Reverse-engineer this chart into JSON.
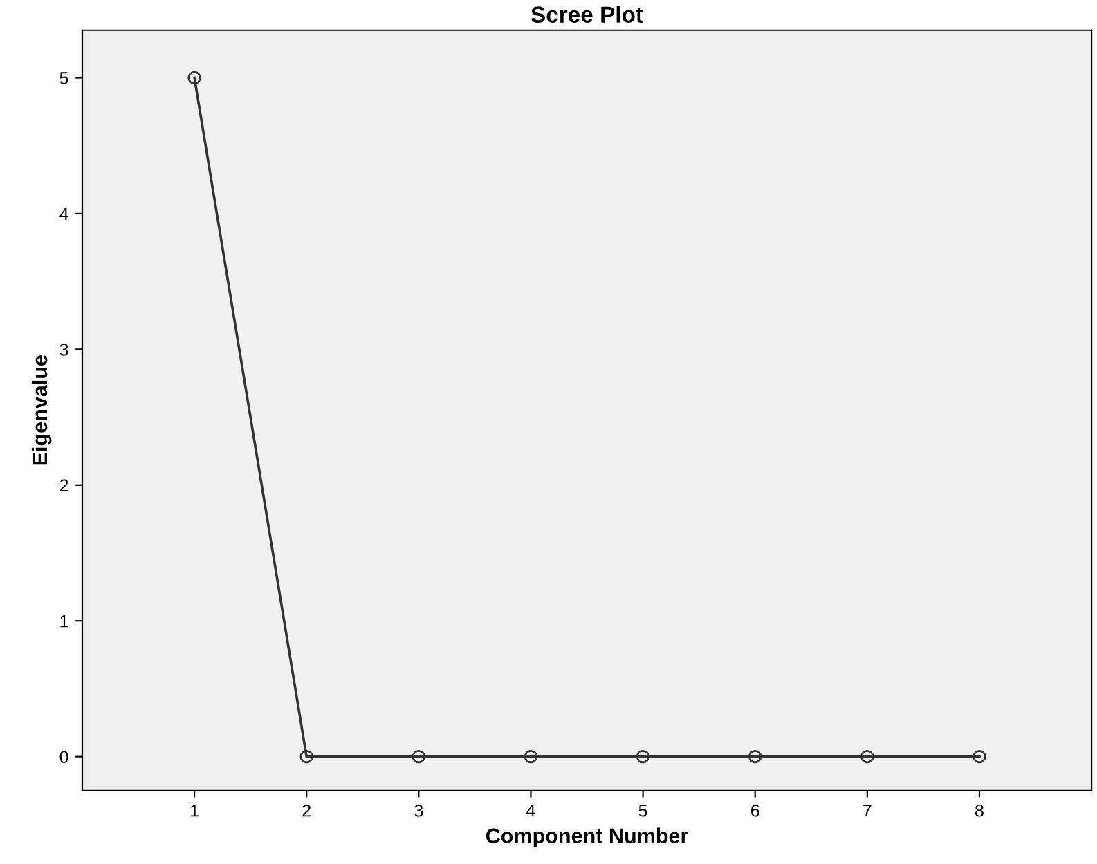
{
  "chart_data": {
    "type": "line",
    "title": "Scree Plot",
    "xlabel": "Component Number",
    "ylabel": "Eigenvalue",
    "categories": [
      "1",
      "2",
      "3",
      "4",
      "5",
      "6",
      "7",
      "8"
    ],
    "values": [
      5,
      0,
      0,
      0,
      0,
      0,
      0,
      0
    ],
    "color": "#333333",
    "ylim": [
      -0.25,
      5.35
    ],
    "yticks": [
      0,
      1,
      2,
      3,
      4,
      5
    ],
    "marker": "circle",
    "line_style": "solid",
    "grid": false,
    "legend": false
  }
}
